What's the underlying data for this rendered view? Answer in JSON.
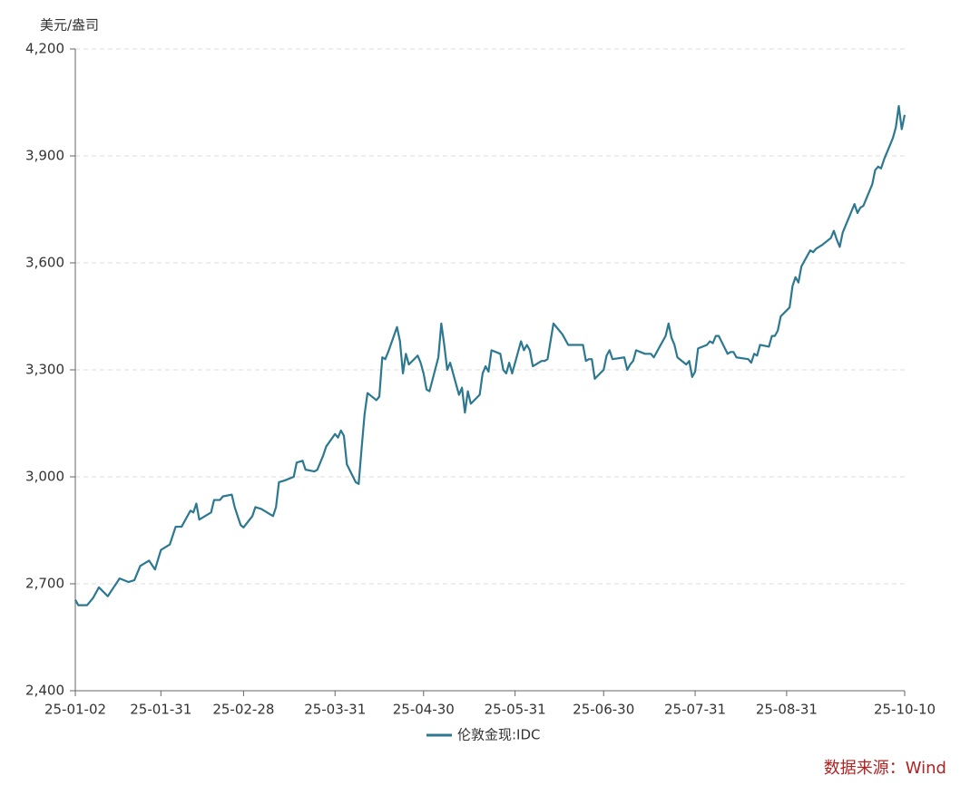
{
  "chart_data": {
    "type": "line",
    "y_axis_label": "美元/盎司",
    "source": "数据来源：Wind",
    "x": [
      "25-01-02",
      "25-01-03",
      "25-01-06",
      "25-01-08",
      "25-01-10",
      "25-01-13",
      "25-01-15",
      "25-01-17",
      "25-01-20",
      "25-01-22",
      "25-01-24",
      "25-01-27",
      "25-01-29",
      "25-01-31",
      "25-02-03",
      "25-02-05",
      "25-02-07",
      "25-02-10",
      "25-02-11",
      "25-02-12",
      "25-02-13",
      "25-02-17",
      "25-02-18",
      "25-02-20",
      "25-02-21",
      "25-02-24",
      "25-02-25",
      "25-02-27",
      "25-02-28",
      "25-03-03",
      "25-03-04",
      "25-03-06",
      "25-03-10",
      "25-03-11",
      "25-03-12",
      "25-03-14",
      "25-03-17",
      "25-03-18",
      "25-03-20",
      "25-03-21",
      "25-03-24",
      "25-03-25",
      "25-03-27",
      "25-03-28",
      "25-03-31",
      "25-04-01",
      "25-04-02",
      "25-04-03",
      "25-04-04",
      "25-04-07",
      "25-04-08",
      "25-04-09",
      "25-04-10",
      "25-04-11",
      "25-04-14",
      "25-04-15",
      "25-04-16",
      "25-04-17",
      "25-04-18",
      "25-04-21",
      "25-04-22",
      "25-04-23",
      "25-04-24",
      "25-04-25",
      "25-04-28",
      "25-04-29",
      "25-04-30",
      "25-05-01",
      "25-05-02",
      "25-05-05",
      "25-05-06",
      "25-05-07",
      "25-05-08",
      "25-05-09",
      "25-05-12",
      "25-05-13",
      "25-05-14",
      "25-05-15",
      "25-05-16",
      "25-05-19",
      "25-05-20",
      "25-05-21",
      "25-05-22",
      "25-05-23",
      "25-05-26",
      "25-05-27",
      "25-05-28",
      "25-05-29",
      "25-05-30",
      "25-06-02",
      "25-06-03",
      "25-06-04",
      "25-06-05",
      "25-06-06",
      "25-06-09",
      "25-06-10",
      "25-06-11",
      "25-06-13",
      "25-06-16",
      "25-06-17",
      "25-06-18",
      "25-06-20",
      "25-06-23",
      "25-06-24",
      "25-06-25",
      "25-06-26",
      "25-06-27",
      "25-06-30",
      "25-07-01",
      "25-07-02",
      "25-07-03",
      "25-07-07",
      "25-07-08",
      "25-07-09",
      "25-07-10",
      "25-07-11",
      "25-07-14",
      "25-07-16",
      "25-07-17",
      "25-07-18",
      "25-07-21",
      "25-07-22",
      "25-07-23",
      "25-07-24",
      "25-07-25",
      "25-07-28",
      "25-07-29",
      "25-07-30",
      "25-07-31",
      "25-08-01",
      "25-08-04",
      "25-08-05",
      "25-08-06",
      "25-08-07",
      "25-08-08",
      "25-08-11",
      "25-08-12",
      "25-08-13",
      "25-08-14",
      "25-08-18",
      "25-08-19",
      "25-08-20",
      "25-08-21",
      "25-08-22",
      "25-08-25",
      "25-08-26",
      "25-08-27",
      "25-08-28",
      "25-08-29",
      "25-09-01",
      "25-09-02",
      "25-09-03",
      "25-09-04",
      "25-09-05",
      "25-09-08",
      "25-09-09",
      "25-09-10",
      "25-09-12",
      "25-09-15",
      "25-09-16",
      "25-09-17",
      "25-09-18",
      "25-09-19",
      "25-09-22",
      "25-09-23",
      "25-09-24",
      "25-09-25",
      "25-09-26",
      "25-09-29",
      "25-09-30",
      "25-10-01",
      "25-10-02",
      "25-10-03",
      "25-10-06",
      "25-10-07",
      "25-10-08",
      "25-10-09",
      "25-10-10"
    ],
    "series": [
      {
        "name": "伦敦金现:IDC",
        "color": "#2c7891",
        "values": [
          2655,
          2640,
          2640,
          2660,
          2690,
          2665,
          2690,
          2715,
          2705,
          2710,
          2750,
          2765,
          2740,
          2795,
          2810,
          2860,
          2860,
          2905,
          2900,
          2925,
          2880,
          2900,
          2935,
          2935,
          2945,
          2950,
          2915,
          2865,
          2858,
          2890,
          2915,
          2910,
          2890,
          2915,
          2985,
          2990,
          3000,
          3040,
          3045,
          3020,
          3015,
          3020,
          3060,
          3085,
          3120,
          3110,
          3130,
          3115,
          3035,
          2985,
          2980,
          3080,
          3175,
          3235,
          3215,
          3225,
          3335,
          3330,
          3350,
          3420,
          3380,
          3290,
          3345,
          3315,
          3340,
          3320,
          3290,
          3245,
          3240,
          3335,
          3430,
          3370,
          3300,
          3320,
          3230,
          3250,
          3180,
          3240,
          3205,
          3230,
          3290,
          3310,
          3295,
          3355,
          3345,
          3300,
          3290,
          3320,
          3290,
          3380,
          3355,
          3370,
          3355,
          3310,
          3325,
          3325,
          3330,
          3430,
          3400,
          3385,
          3370,
          3370,
          3370,
          3325,
          3330,
          3330,
          3275,
          3300,
          3340,
          3355,
          3330,
          3335,
          3300,
          3315,
          3325,
          3355,
          3345,
          3345,
          3335,
          3350,
          3395,
          3430,
          3390,
          3370,
          3335,
          3315,
          3325,
          3280,
          3295,
          3360,
          3370,
          3380,
          3375,
          3395,
          3395,
          3345,
          3350,
          3350,
          3335,
          3330,
          3320,
          3345,
          3340,
          3370,
          3365,
          3395,
          3395,
          3410,
          3450,
          3475,
          3535,
          3560,
          3545,
          3590,
          3635,
          3630,
          3640,
          3650,
          3670,
          3690,
          3665,
          3645,
          3685,
          3745,
          3765,
          3740,
          3755,
          3760,
          3820,
          3860,
          3870,
          3865,
          3890,
          3950,
          3980,
          4040,
          3975,
          4015
        ]
      }
    ],
    "xlim": [
      "25-01-02",
      "25-10-10"
    ],
    "xticks": [
      "25-01-02",
      "25-01-31",
      "25-02-28",
      "25-03-31",
      "25-04-30",
      "25-05-31",
      "25-06-30",
      "25-07-31",
      "25-08-31",
      "25-10-10"
    ],
    "ylim": [
      2400,
      4200
    ],
    "yticks": [
      {
        "value": 2400,
        "label": "2,400"
      },
      {
        "value": 2700,
        "label": "2,700"
      },
      {
        "value": 3000,
        "label": "3,000"
      },
      {
        "value": 3300,
        "label": "3,300"
      },
      {
        "value": 3600,
        "label": "3,600"
      },
      {
        "value": 3900,
        "label": "3,900"
      },
      {
        "value": 4200,
        "label": "4,200"
      }
    ],
    "grid": true,
    "legend": "bottom"
  }
}
